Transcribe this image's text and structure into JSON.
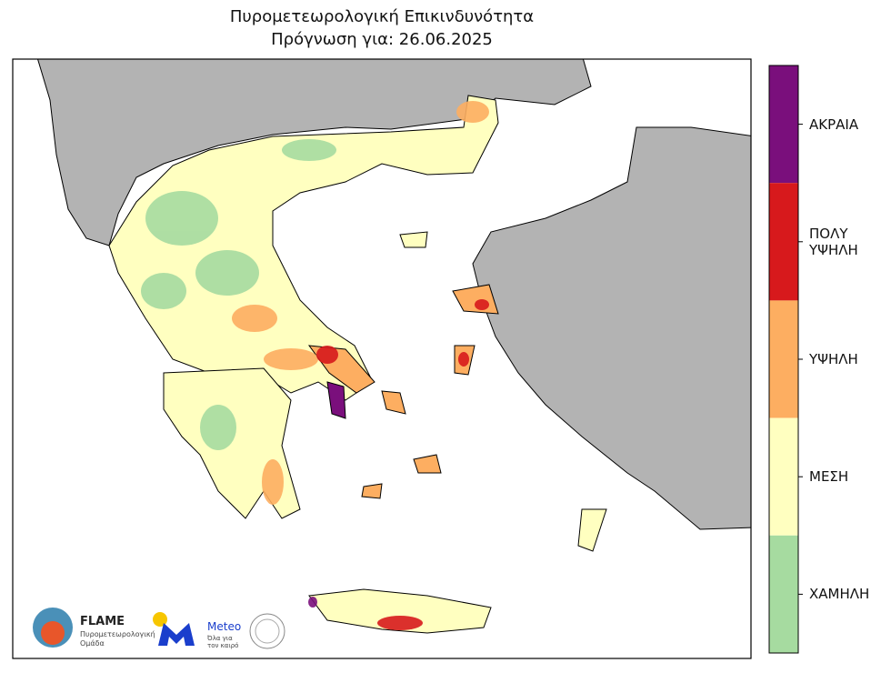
{
  "title": [
    "Πυρομετεωρολογική Επικινδυνότητα",
    "Πρόγνωση για: 26.06.2025"
  ],
  "legend": {
    "levels": [
      {
        "label": "ΑΚΡΑΙΑ",
        "color": "#7a0f7c"
      },
      {
        "label": "ΠΟΛΥ ΥΨΗΛΗ",
        "color": "#d7191c"
      },
      {
        "label": "ΥΨΗΛΗ",
        "color": "#fdae61"
      },
      {
        "label": "ΜΕΣΗ",
        "color": "#ffffc0"
      },
      {
        "label": "ΧΑΜΗΛΗ",
        "color": "#a6dba0"
      }
    ]
  },
  "logos": {
    "flame": {
      "name": "FLAME",
      "subtitle": "Πυρομετεωρολογική Ομάδα"
    },
    "meteo": {
      "name": "Meteo",
      "slogan": "Όλα για τον καιρό"
    }
  }
}
